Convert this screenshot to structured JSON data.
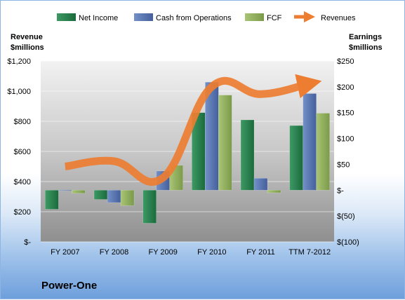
{
  "company": "Power-One",
  "colors": {
    "net_income": "#1e7a46",
    "cash_from_operations": "#4f6fae",
    "fcf": "#8aab57",
    "revenues": "#ed7d31"
  },
  "chart_data": {
    "type": "bar",
    "categories": [
      "FY 2007",
      "FY 2008",
      "FY 2009",
      "FY 2010",
      "FY 2011",
      "TTM 7-2012"
    ],
    "left_axis": {
      "label_line1": "Revenue",
      "label_line2": "$millions",
      "ylim": [
        0,
        1200
      ],
      "ticks": [
        0,
        200,
        400,
        600,
        800,
        1000,
        1200
      ],
      "tick_labels": [
        "$-",
        "$200",
        "$400",
        "$600",
        "$800",
        "$1,000",
        "$1,200"
      ]
    },
    "right_axis": {
      "label_line1": "Earnings",
      "label_line2": "$millions",
      "ylim": [
        -100,
        250
      ],
      "ticks": [
        -100,
        -50,
        0,
        50,
        100,
        150,
        200,
        250
      ],
      "tick_labels": [
        "$(100)",
        "$(50)",
        "$-",
        "$50",
        "$100",
        "$150",
        "$200",
        "$250"
      ]
    },
    "series": [
      {
        "name": "Net Income",
        "axis": "right",
        "kind": "bar",
        "values": [
          -37,
          -18,
          -64,
          150,
          136,
          125
        ]
      },
      {
        "name": "Cash from Operations",
        "axis": "right",
        "kind": "bar",
        "values": [
          -1,
          -24,
          37,
          209,
          23,
          187
        ]
      },
      {
        "name": "FCF",
        "axis": "right",
        "kind": "bar",
        "values": [
          -6,
          -30,
          48,
          184,
          -5,
          149
        ]
      },
      {
        "name": "Revenues",
        "axis": "left",
        "kind": "line",
        "values": [
          500,
          535,
          425,
          1030,
          980,
          1050
        ]
      }
    ],
    "legend_position": "top",
    "grid": true
  }
}
